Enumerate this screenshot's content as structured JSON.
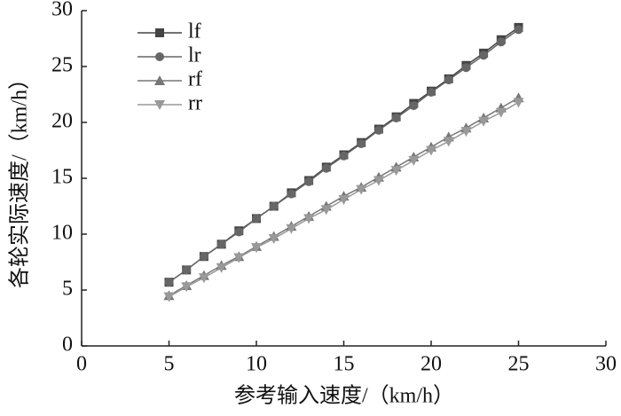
{
  "chart_data": {
    "type": "line",
    "x_label": "参考输入速度/（km/h）",
    "y_label": "各轮实际速度/（km/h）",
    "x": [
      5,
      6,
      7,
      8,
      9,
      10,
      11,
      12,
      13,
      14,
      15,
      16,
      17,
      18,
      19,
      20,
      21,
      22,
      23,
      24,
      25
    ],
    "series": [
      {
        "name": "lf",
        "color": "#444444",
        "marker": "square",
        "values": [
          5.7,
          6.8,
          8.0,
          9.1,
          10.3,
          11.4,
          12.5,
          13.7,
          14.8,
          16.0,
          17.1,
          18.2,
          19.4,
          20.5,
          21.7,
          22.8,
          23.9,
          25.1,
          26.2,
          27.4,
          28.5
        ]
      },
      {
        "name": "lr",
        "color": "#666666",
        "marker": "circle",
        "values": [
          5.7,
          6.8,
          8.0,
          9.1,
          10.2,
          11.4,
          12.5,
          13.6,
          14.7,
          15.9,
          17.0,
          18.1,
          19.3,
          20.4,
          21.5,
          22.7,
          23.8,
          24.9,
          26.0,
          27.2,
          28.3
        ]
      },
      {
        "name": "rf",
        "color": "#777777",
        "marker": "triangle-up",
        "values": [
          4.5,
          5.4,
          6.3,
          7.2,
          8.0,
          8.9,
          9.8,
          10.7,
          11.6,
          12.5,
          13.4,
          14.2,
          15.1,
          16.0,
          16.9,
          17.8,
          18.7,
          19.5,
          20.4,
          21.3,
          22.2
        ]
      },
      {
        "name": "rr",
        "color": "#999999",
        "marker": "triangle-down",
        "values": [
          4.4,
          5.3,
          6.1,
          7.0,
          7.9,
          8.8,
          9.6,
          10.5,
          11.4,
          12.2,
          13.1,
          14.0,
          14.8,
          15.7,
          16.6,
          17.5,
          18.3,
          19.2,
          20.1,
          20.9,
          21.8
        ]
      }
    ],
    "xlim": [
      0,
      30
    ],
    "xticks": [
      0,
      5,
      10,
      15,
      20,
      25,
      30
    ],
    "ylim": [
      0,
      30
    ],
    "yticks": [
      0,
      5,
      10,
      15,
      20,
      25,
      30
    ],
    "legend": "upper-left",
    "grid": false
  }
}
